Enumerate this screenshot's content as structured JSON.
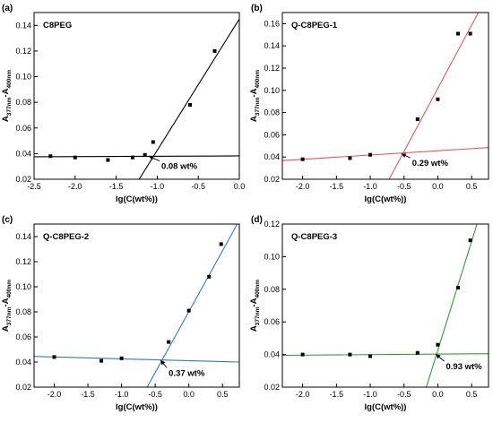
{
  "chart_data": [
    {
      "type": "scatter",
      "panel_label": "(a)",
      "title": "C8PEG",
      "xlabel": "lg(C(wt%))",
      "ylabel": "A377nm-A400nm",
      "ylabel_parts": {
        "base1": "A",
        "sub1": "377nm",
        "mid": "-A",
        "sub2": "400nm"
      },
      "xlim": [
        -2.5,
        0.0
      ],
      "ylim": [
        0.02,
        0.15
      ],
      "xticks": [
        -2.5,
        -2.0,
        -1.5,
        -1.0,
        -0.5,
        0.0
      ],
      "xtick_labels": [
        "-2.5",
        "-2.0",
        "-1.5",
        "-1.0",
        "-0.5",
        "0.0"
      ],
      "yticks": [
        0.02,
        0.04,
        0.06,
        0.08,
        0.1,
        0.12,
        0.14
      ],
      "ytick_labels": [
        "0.02",
        "0.04",
        "0.06",
        "0.08",
        "0.10",
        "0.12",
        "0.14"
      ],
      "line_color": "#000000",
      "points": [
        {
          "x": -2.3,
          "y": 0.038
        },
        {
          "x": -2.0,
          "y": 0.037
        },
        {
          "x": -1.6,
          "y": 0.035
        },
        {
          "x": -1.3,
          "y": 0.037
        },
        {
          "x": -1.15,
          "y": 0.039
        },
        {
          "x": -1.05,
          "y": 0.049
        },
        {
          "x": -0.6,
          "y": 0.078
        },
        {
          "x": -0.3,
          "y": 0.12
        }
      ],
      "fit_lines": [
        {
          "p1": [
            -2.5,
            0.0375
          ],
          "p2": [
            0.0,
            0.0382
          ]
        },
        {
          "p1": [
            -1.22,
            0.02
          ],
          "p2": [
            0.0,
            0.145
          ]
        }
      ],
      "annotation": {
        "text": "0.08 wt%",
        "x": -1.1,
        "y": 0.0378,
        "text_x": -0.95,
        "text_y": 0.028
      }
    },
    {
      "type": "scatter",
      "panel_label": "(b)",
      "title": "Q-C8PEG-1",
      "xlabel": "lg(C(wt%))",
      "ylabel": "A377nm-A400nm",
      "ylabel_parts": {
        "base1": "A",
        "sub1": "377nm",
        "mid": "-A",
        "sub2": "400nm"
      },
      "xlim": [
        -2.3,
        0.75
      ],
      "ylim": [
        0.02,
        0.17
      ],
      "xticks": [
        -2.0,
        -1.5,
        -1.0,
        -0.5,
        0.0,
        0.5
      ],
      "xtick_labels": [
        "-2.0",
        "-1.5",
        "-1.0",
        "-0.5",
        "0.0",
        "0.5"
      ],
      "yticks": [
        0.02,
        0.04,
        0.06,
        0.08,
        0.1,
        0.12,
        0.14,
        0.16
      ],
      "ytick_labels": [
        "0.02",
        "0.04",
        "0.06",
        "0.08",
        "0.10",
        "0.12",
        "0.14",
        "0.16"
      ],
      "line_color": "#e05a5a",
      "points": [
        {
          "x": -2.0,
          "y": 0.038
        },
        {
          "x": -1.3,
          "y": 0.039
        },
        {
          "x": -1.0,
          "y": 0.042
        },
        {
          "x": -0.3,
          "y": 0.074
        },
        {
          "x": 0.0,
          "y": 0.092
        },
        {
          "x": 0.3,
          "y": 0.151
        },
        {
          "x": 0.48,
          "y": 0.151
        }
      ],
      "fit_lines": [
        {
          "p1": [
            -2.3,
            0.0368
          ],
          "p2": [
            0.75,
            0.0485
          ]
        },
        {
          "p1": [
            -0.72,
            0.02
          ],
          "p2": [
            0.6,
            0.17
          ]
        }
      ],
      "annotation": {
        "text": "0.29 wt%",
        "x": -0.54,
        "y": 0.0429,
        "text_x": -0.38,
        "text_y": 0.032
      }
    },
    {
      "type": "scatter",
      "panel_label": "(c)",
      "title": "Q-C8PEG-2",
      "xlabel": "lg(C(wt%))",
      "ylabel": "A377nm-A400nm",
      "ylabel_parts": {
        "base1": "A",
        "sub1": "377nm",
        "mid": "-A",
        "sub2": "400nm"
      },
      "xlim": [
        -2.3,
        0.75
      ],
      "ylim": [
        0.02,
        0.15
      ],
      "xticks": [
        -2.0,
        -1.5,
        -1.0,
        -0.5,
        0.0,
        0.5
      ],
      "xtick_labels": [
        "-2.0",
        "-1.5",
        "-1.0",
        "-0.5",
        "0.0",
        "0.5"
      ],
      "yticks": [
        0.02,
        0.04,
        0.06,
        0.08,
        0.1,
        0.12,
        0.14
      ],
      "ytick_labels": [
        "0.02",
        "0.04",
        "0.06",
        "0.08",
        "0.10",
        "0.12",
        "0.14"
      ],
      "line_color": "#3b7bab",
      "points": [
        {
          "x": -2.0,
          "y": 0.044
        },
        {
          "x": -1.3,
          "y": 0.041
        },
        {
          "x": -1.0,
          "y": 0.043
        },
        {
          "x": -0.3,
          "y": 0.056
        },
        {
          "x": 0.0,
          "y": 0.081
        },
        {
          "x": 0.3,
          "y": 0.108
        },
        {
          "x": 0.48,
          "y": 0.134
        }
      ],
      "fit_lines": [
        {
          "p1": [
            -2.3,
            0.0445
          ],
          "p2": [
            0.75,
            0.04
          ]
        },
        {
          "p1": [
            -0.62,
            0.02
          ],
          "p2": [
            0.72,
            0.15
          ]
        }
      ],
      "annotation": {
        "text": "0.37 wt%",
        "x": -0.42,
        "y": 0.0415,
        "text_x": -0.3,
        "text_y": 0.029
      }
    },
    {
      "type": "scatter",
      "panel_label": "(d)",
      "title": "Q-C8PEG-3",
      "xlabel": "lg(C(wt%))",
      "ylabel": "A377nm-A400nm",
      "ylabel_parts": {
        "base1": "A",
        "sub1": "377nm",
        "mid": "-A",
        "sub2": "400nm"
      },
      "xlim": [
        -2.3,
        0.75
      ],
      "ylim": [
        0.02,
        0.12
      ],
      "xticks": [
        -2.0,
        -1.5,
        -1.0,
        -0.5,
        0.0,
        0.5
      ],
      "xtick_labels": [
        "-2.0",
        "-1.5",
        "-1.0",
        "-0.5",
        "0.0",
        "0.5"
      ],
      "yticks": [
        0.02,
        0.04,
        0.06,
        0.08,
        0.1,
        0.12
      ],
      "ytick_labels": [
        "0.02",
        "0.04",
        "0.06",
        "0.08",
        "0.10",
        "0.12"
      ],
      "line_color": "#3a9a3a",
      "points": [
        {
          "x": -2.0,
          "y": 0.04
        },
        {
          "x": -1.3,
          "y": 0.04
        },
        {
          "x": -1.0,
          "y": 0.039
        },
        {
          "x": -0.3,
          "y": 0.041
        },
        {
          "x": 0.0,
          "y": 0.046
        },
        {
          "x": 0.3,
          "y": 0.081
        },
        {
          "x": 0.48,
          "y": 0.11
        }
      ],
      "fit_lines": [
        {
          "p1": [
            -2.3,
            0.0395
          ],
          "p2": [
            0.75,
            0.0405
          ]
        },
        {
          "p1": [
            -0.17,
            0.02
          ],
          "p2": [
            0.58,
            0.12
          ]
        }
      ],
      "annotation": {
        "text": "0.93 wt%",
        "x": -0.03,
        "y": 0.0402,
        "text_x": 0.12,
        "text_y": 0.031
      }
    }
  ]
}
